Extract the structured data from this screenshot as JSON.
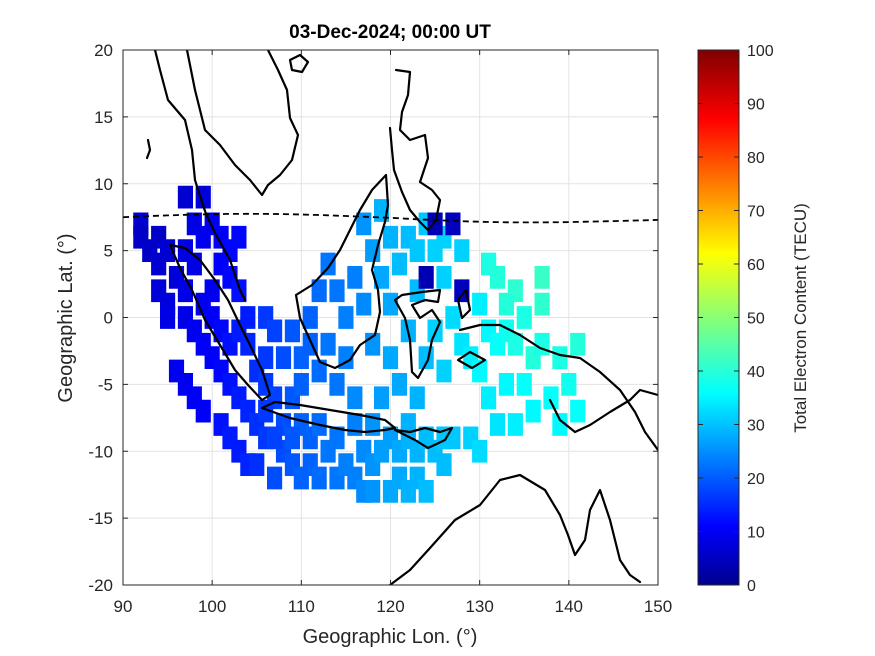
{
  "chart_data": {
    "type": "heatmap",
    "title": "03-Dec-2024; 00:00 UT",
    "xlabel": "Geographic Lon. (°)",
    "ylabel": "Geographic Lat. (°)",
    "xlim": [
      90,
      150
    ],
    "ylim": [
      -20,
      20
    ],
    "xticks": [
      "90",
      "100",
      "110",
      "120",
      "130",
      "140",
      "150"
    ],
    "yticks": [
      "20",
      "15",
      "10",
      "5",
      "0",
      "-5",
      "-10",
      "-15",
      "-20"
    ],
    "grid": true,
    "colormap": "jet",
    "colorbar": {
      "label": "Total Electron Content (TECU)",
      "range": [
        0,
        100
      ],
      "ticks": [
        "0",
        "10",
        "20",
        "30",
        "40",
        "50",
        "60",
        "70",
        "80",
        "90",
        "100"
      ]
    },
    "magnetic_equator_lat": 7.5,
    "tec_cells": [
      {
        "lon": 92,
        "lat": 7,
        "tec": 8
      },
      {
        "lon": 92,
        "lat": 6,
        "tec": 7
      },
      {
        "lon": 93,
        "lat": 5,
        "tec": 7
      },
      {
        "lon": 94,
        "lat": 6,
        "tec": 7
      },
      {
        "lon": 95,
        "lat": 5,
        "tec": 8
      },
      {
        "lon": 94,
        "lat": 4,
        "tec": 8
      },
      {
        "lon": 94,
        "lat": 2,
        "tec": 9
      },
      {
        "lon": 95,
        "lat": 1,
        "tec": 9
      },
      {
        "lon": 95,
        "lat": 0,
        "tec": 10
      },
      {
        "lon": 96,
        "lat": 3,
        "tec": 9
      },
      {
        "lon": 97,
        "lat": 2,
        "tec": 10
      },
      {
        "lon": 97,
        "lat": 0,
        "tec": 10
      },
      {
        "lon": 98,
        "lat": 4,
        "tec": 10
      },
      {
        "lon": 97,
        "lat": 5,
        "tec": 10
      },
      {
        "lon": 97,
        "lat": 9,
        "tec": 8
      },
      {
        "lon": 99,
        "lat": 9,
        "tec": 9
      },
      {
        "lon": 98,
        "lat": 7,
        "tec": 10
      },
      {
        "lon": 99,
        "lat": 6,
        "tec": 11
      },
      {
        "lon": 100,
        "lat": 7,
        "tec": 11
      },
      {
        "lon": 101,
        "lat": 6,
        "tec": 12
      },
      {
        "lon": 102,
        "lat": 5,
        "tec": 13
      },
      {
        "lon": 103,
        "lat": 6,
        "tec": 13
      },
      {
        "lon": 101,
        "lat": 4,
        "tec": 12
      },
      {
        "lon": 102,
        "lat": 3,
        "tec": 13
      },
      {
        "lon": 103,
        "lat": 2,
        "tec": 14
      },
      {
        "lon": 100,
        "lat": 2,
        "tec": 11
      },
      {
        "lon": 99,
        "lat": 1,
        "tec": 11
      },
      {
        "lon": 100,
        "lat": 0,
        "tec": 12
      },
      {
        "lon": 98,
        "lat": -1,
        "tec": 11
      },
      {
        "lon": 99,
        "lat": -2,
        "tec": 12
      },
      {
        "lon": 101,
        "lat": -1,
        "tec": 13
      },
      {
        "lon": 102,
        "lat": -2,
        "tec": 14
      },
      {
        "lon": 103,
        "lat": -1,
        "tec": 15
      },
      {
        "lon": 104,
        "lat": 0,
        "tec": 15
      },
      {
        "lon": 104,
        "lat": -2,
        "tec": 16
      },
      {
        "lon": 100,
        "lat": -3,
        "tec": 12
      },
      {
        "lon": 101,
        "lat": -4,
        "tec": 13
      },
      {
        "lon": 102,
        "lat": -5,
        "tec": 14
      },
      {
        "lon": 103,
        "lat": -6,
        "tec": 15
      },
      {
        "lon": 104,
        "lat": -7,
        "tec": 16
      },
      {
        "lon": 105,
        "lat": -4,
        "tec": 17
      },
      {
        "lon": 106,
        "lat": -3,
        "tec": 18
      },
      {
        "lon": 106,
        "lat": -5,
        "tec": 18
      },
      {
        "lon": 107,
        "lat": -6,
        "tec": 19
      },
      {
        "lon": 105,
        "lat": -8,
        "tec": 17
      },
      {
        "lon": 106,
        "lat": -9,
        "tec": 18
      },
      {
        "lon": 108,
        "lat": -8,
        "tec": 20
      },
      {
        "lon": 109,
        "lat": -6,
        "tec": 21
      },
      {
        "lon": 110,
        "lat": -8,
        "tec": 22
      },
      {
        "lon": 111,
        "lat": -9,
        "tec": 22
      },
      {
        "lon": 112,
        "lat": -8,
        "tec": 23
      },
      {
        "lon": 113,
        "lat": -10,
        "tec": 24
      },
      {
        "lon": 114,
        "lat": -9,
        "tec": 24
      },
      {
        "lon": 108,
        "lat": -10,
        "tec": 20
      },
      {
        "lon": 109,
        "lat": -11,
        "tec": 21
      },
      {
        "lon": 107,
        "lat": -12,
        "tec": 20
      },
      {
        "lon": 110,
        "lat": -12,
        "tec": 22
      },
      {
        "lon": 111,
        "lat": -11,
        "tec": 22
      },
      {
        "lon": 112,
        "lat": -12,
        "tec": 23
      },
      {
        "lon": 114,
        "lat": -12,
        "tec": 24
      },
      {
        "lon": 115,
        "lat": -11,
        "tec": 25
      },
      {
        "lon": 116,
        "lat": -12,
        "tec": 25
      },
      {
        "lon": 117,
        "lat": -10,
        "tec": 26
      },
      {
        "lon": 118,
        "lat": -11,
        "tec": 27
      },
      {
        "lon": 119,
        "lat": -10,
        "tec": 28
      },
      {
        "lon": 120,
        "lat": -9,
        "tec": 28
      },
      {
        "lon": 121,
        "lat": -10,
        "tec": 29
      },
      {
        "lon": 122,
        "lat": -9,
        "tec": 30
      },
      {
        "lon": 123,
        "lat": -10,
        "tec": 30
      },
      {
        "lon": 124,
        "lat": -9,
        "tec": 31
      },
      {
        "lon": 125,
        "lat": -10,
        "tec": 31
      },
      {
        "lon": 126,
        "lat": -9,
        "tec": 32
      },
      {
        "lon": 117,
        "lat": -13,
        "tec": 26
      },
      {
        "lon": 118,
        "lat": -13,
        "tec": 27
      },
      {
        "lon": 120,
        "lat": -13,
        "tec": 29
      },
      {
        "lon": 121,
        "lat": -12,
        "tec": 29
      },
      {
        "lon": 122,
        "lat": -13,
        "tec": 30
      },
      {
        "lon": 123,
        "lat": -12,
        "tec": 30
      },
      {
        "lon": 124,
        "lat": -13,
        "tec": 31
      },
      {
        "lon": 116,
        "lat": -8,
        "tec": 25
      },
      {
        "lon": 118,
        "lat": -8,
        "tec": 27
      },
      {
        "lon": 96,
        "lat": -4,
        "tec": 11
      },
      {
        "lon": 97,
        "lat": -5,
        "tec": 11
      },
      {
        "lon": 98,
        "lat": -6,
        "tec": 12
      },
      {
        "lon": 99,
        "lat": -7,
        "tec": 12
      },
      {
        "lon": 101,
        "lat": -8,
        "tec": 14
      },
      {
        "lon": 102,
        "lat": -9,
        "tec": 15
      },
      {
        "lon": 103,
        "lat": -10,
        "tec": 15
      },
      {
        "lon": 104,
        "lat": -11,
        "tec": 16
      },
      {
        "lon": 105,
        "lat": -11,
        "tec": 17
      },
      {
        "lon": 106,
        "lat": -7,
        "tec": 18
      },
      {
        "lon": 107,
        "lat": -9,
        "tec": 19
      },
      {
        "lon": 109,
        "lat": -9,
        "tec": 21
      },
      {
        "lon": 106,
        "lat": 0,
        "tec": 18
      },
      {
        "lon": 107,
        "lat": -1,
        "tec": 19
      },
      {
        "lon": 108,
        "lat": -3,
        "tec": 20
      },
      {
        "lon": 109,
        "lat": -1,
        "tec": 21
      },
      {
        "lon": 110,
        "lat": -3,
        "tec": 22
      },
      {
        "lon": 110,
        "lat": -5,
        "tec": 22
      },
      {
        "lon": 111,
        "lat": -2,
        "tec": 22
      },
      {
        "lon": 112,
        "lat": -4,
        "tec": 23
      },
      {
        "lon": 113,
        "lat": -2,
        "tec": 24
      },
      {
        "lon": 114,
        "lat": -5,
        "tec": 24
      },
      {
        "lon": 115,
        "lat": -3,
        "tec": 25
      },
      {
        "lon": 116,
        "lat": -6,
        "tec": 26
      },
      {
        "lon": 111,
        "lat": 0,
        "tec": 22
      },
      {
        "lon": 112,
        "lat": 2,
        "tec": 23
      },
      {
        "lon": 113,
        "lat": 4,
        "tec": 24
      },
      {
        "lon": 114,
        "lat": 2,
        "tec": 24
      },
      {
        "lon": 115,
        "lat": 0,
        "tec": 25
      },
      {
        "lon": 116,
        "lat": 3,
        "tec": 25
      },
      {
        "lon": 117,
        "lat": 1,
        "tec": 26
      },
      {
        "lon": 118,
        "lat": -2,
        "tec": 27
      },
      {
        "lon": 118,
        "lat": 5,
        "tec": 28
      },
      {
        "lon": 119,
        "lat": 3,
        "tec": 29
      },
      {
        "lon": 120,
        "lat": 1,
        "tec": 29
      },
      {
        "lon": 120,
        "lat": -3,
        "tec": 29
      },
      {
        "lon": 121,
        "lat": -5,
        "tec": 29
      },
      {
        "lon": 119,
        "lat": -6,
        "tec": 28
      },
      {
        "lon": 122,
        "lat": -1,
        "tec": 30
      },
      {
        "lon": 123,
        "lat": 2,
        "tec": 31
      },
      {
        "lon": 124,
        "lat": -3,
        "tec": 31
      },
      {
        "lon": 123,
        "lat": -6,
        "tec": 30
      },
      {
        "lon": 117,
        "lat": 7,
        "tec": 27
      },
      {
        "lon": 119,
        "lat": 8,
        "tec": 30
      },
      {
        "lon": 120,
        "lat": 6,
        "tec": 30
      },
      {
        "lon": 121,
        "lat": 4,
        "tec": 31
      },
      {
        "lon": 122,
        "lat": 6,
        "tec": 31
      },
      {
        "lon": 123,
        "lat": 5,
        "tec": 32
      },
      {
        "lon": 124,
        "lat": 7,
        "tec": 32
      },
      {
        "lon": 125,
        "lat": 5,
        "tec": 33
      },
      {
        "lon": 126,
        "lat": 6,
        "tec": 33
      },
      {
        "lon": 125,
        "lat": 7,
        "tec": 5
      },
      {
        "lon": 127,
        "lat": 7,
        "tec": 6
      },
      {
        "lon": 124,
        "lat": 3,
        "tec": 5
      },
      {
        "lon": 128,
        "lat": 2,
        "tec": 6
      },
      {
        "lon": 128,
        "lat": 5,
        "tec": 33
      },
      {
        "lon": 126,
        "lat": 3,
        "tec": 33
      },
      {
        "lon": 127,
        "lat": 0,
        "tec": 34
      },
      {
        "lon": 128,
        "lat": -2,
        "tec": 35
      },
      {
        "lon": 126,
        "lat": -4,
        "tec": 33
      },
      {
        "lon": 125,
        "lat": -1,
        "tec": 33
      },
      {
        "lon": 130,
        "lat": 1,
        "tec": 36
      },
      {
        "lon": 131,
        "lat": -1,
        "tec": 37
      },
      {
        "lon": 129,
        "lat": -3,
        "tec": 36
      },
      {
        "lon": 130,
        "lat": -4,
        "tec": 37
      },
      {
        "lon": 132,
        "lat": -2,
        "tec": 38
      },
      {
        "lon": 133,
        "lat": -1,
        "tec": 39
      },
      {
        "lon": 134,
        "lat": -2,
        "tec": 40
      },
      {
        "lon": 135,
        "lat": 0,
        "tec": 40
      },
      {
        "lon": 136,
        "lat": -3,
        "tec": 41
      },
      {
        "lon": 137,
        "lat": -2,
        "tec": 40
      },
      {
        "lon": 135,
        "lat": -5,
        "tec": 38
      },
      {
        "lon": 133,
        "lat": -5,
        "tec": 37
      },
      {
        "lon": 131,
        "lat": -6,
        "tec": 36
      },
      {
        "lon": 132,
        "lat": -8,
        "tec": 35
      },
      {
        "lon": 134,
        "lat": -8,
        "tec": 36
      },
      {
        "lon": 136,
        "lat": -7,
        "tec": 37
      },
      {
        "lon": 138,
        "lat": -6,
        "tec": 38
      },
      {
        "lon": 139,
        "lat": -3,
        "tec": 40
      },
      {
        "lon": 141,
        "lat": -2,
        "tec": 41
      },
      {
        "lon": 140,
        "lat": -5,
        "tec": 39
      },
      {
        "lon": 141,
        "lat": -7,
        "tec": 38
      },
      {
        "lon": 139,
        "lat": -8,
        "tec": 37
      },
      {
        "lon": 131,
        "lat": 4,
        "tec": 40
      },
      {
        "lon": 132,
        "lat": 3,
        "tec": 41
      },
      {
        "lon": 134,
        "lat": 2,
        "tec": 42
      },
      {
        "lon": 133,
        "lat": 1,
        "tec": 41
      },
      {
        "lon": 137,
        "lat": 3,
        "tec": 43
      },
      {
        "lon": 137,
        "lat": 1,
        "tec": 42
      },
      {
        "lon": 129,
        "lat": -9,
        "tec": 33
      },
      {
        "lon": 130,
        "lat": -10,
        "tec": 34
      },
      {
        "lon": 127,
        "lat": -9,
        "tec": 32
      },
      {
        "lon": 126,
        "lat": -11,
        "tec": 31
      },
      {
        "lon": 122,
        "lat": -8,
        "tec": 30
      }
    ]
  }
}
